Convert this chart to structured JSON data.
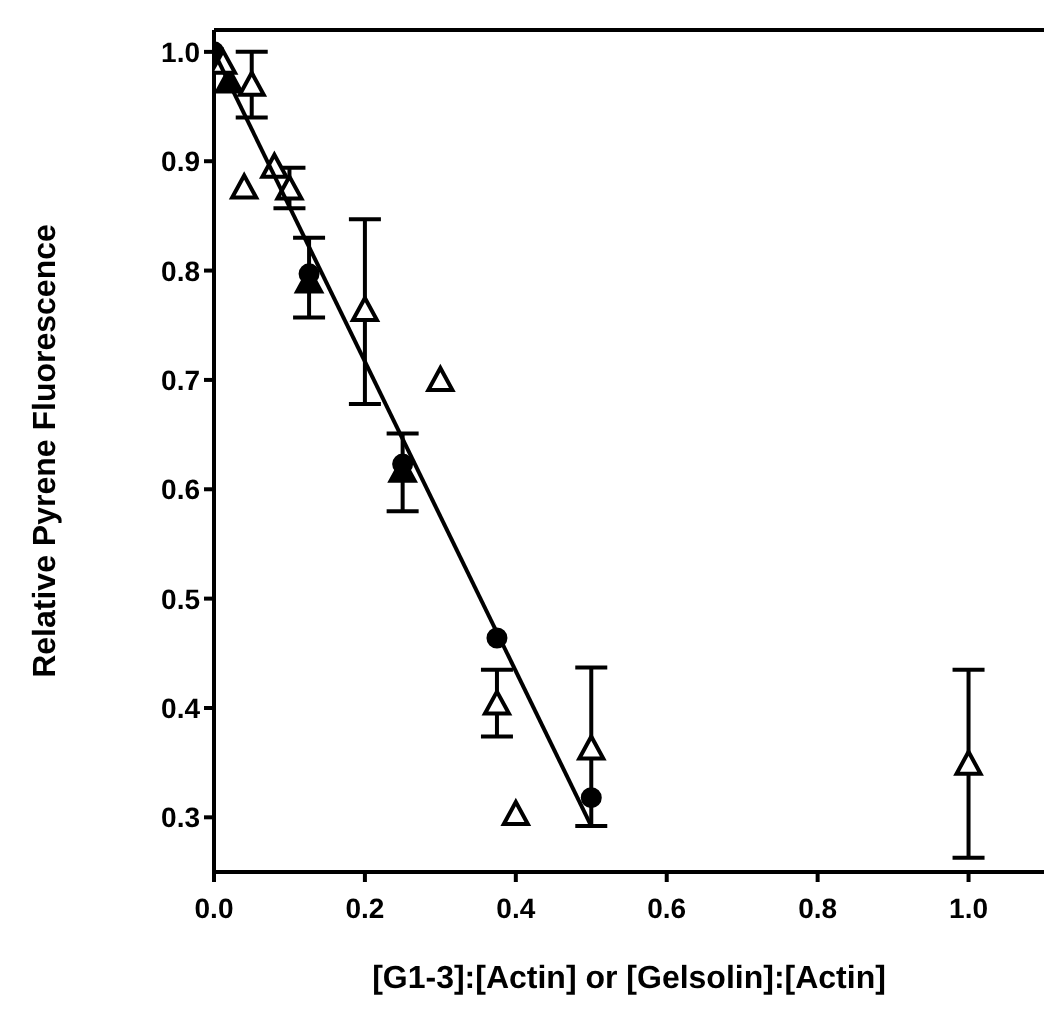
{
  "chart_data": {
    "type": "scatter",
    "xlabel": "[G1-3]:[Actin] or [Gelsolin]:[Actin]",
    "ylabel": "Relative Pyrene Fluorescence",
    "xlim": [
      0,
      1.1
    ],
    "xticks": [
      {
        "value": 0,
        "label": "0.0"
      },
      0.2,
      0.4,
      0.6,
      0.8,
      {
        "value": 1,
        "label": "1.0"
      }
    ],
    "ylim": [
      0.25,
      1.02
    ],
    "yticks": [
      0.3,
      0.4,
      0.5,
      0.6,
      0.7,
      0.8,
      0.9,
      {
        "value": 1,
        "label": "1.0"
      }
    ],
    "grid": false,
    "legend": false,
    "series": [
      {
        "marker": "triangle",
        "color": "#000000",
        "x": [
          0.02,
          0.126,
          0.25
        ],
        "values": [
          0.973,
          0.79,
          0.617
        ],
        "errors": [
          null,
          [
            0.757,
            0.83
          ],
          [
            0.58,
            0.651
          ]
        ]
      },
      {
        "marker": "circle",
        "color": "#000000",
        "x": [
          0,
          0.126,
          0.25,
          0.375,
          0.5
        ],
        "values": [
          1.0,
          0.797,
          0.623,
          0.464,
          0.318
        ]
      },
      {
        "marker": "triangle",
        "color": "#ffffff",
        "x": [
          0.012,
          0.05,
          0.04,
          0.08,
          0.1,
          0.2,
          0.3,
          0.375,
          0.4,
          0.5,
          1.0
        ],
        "values": [
          0.99,
          0.97,
          0.876,
          0.895,
          0.875,
          0.764,
          0.7,
          0.404,
          0.303,
          0.363,
          0.349
        ],
        "errors": [
          null,
          [
            0.94,
            1.0
          ],
          null,
          null,
          [
            0.857,
            0.894
          ],
          [
            0.678,
            0.847
          ],
          null,
          [
            0.374,
            0.435
          ],
          null,
          [
            0.292,
            0.437
          ],
          [
            0.263,
            0.435
          ]
        ]
      },
      {
        "type": "line",
        "marker": "none",
        "color": "#000000",
        "x": [
          0,
          0.5
        ],
        "values": [
          1.0,
          0.292
        ]
      }
    ]
  }
}
